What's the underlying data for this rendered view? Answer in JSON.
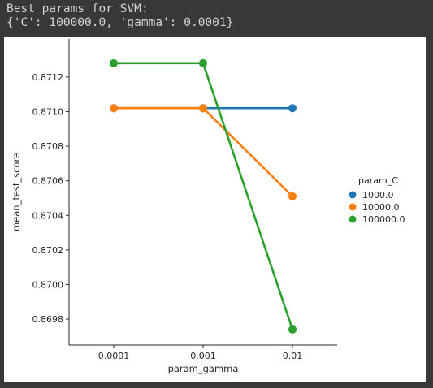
{
  "console": {
    "line1": "Best params for SVM:",
    "line2": "{'C': 100000.0, 'gamma': 0.0001}"
  },
  "chart_data": {
    "type": "line",
    "x": [
      "0.0001",
      "0.001",
      "0.01"
    ],
    "xlabel": "param_gamma",
    "ylabel": "mean_test_score",
    "ylim": [
      0.86965,
      0.87142
    ],
    "yticks": [
      0.8698,
      0.87,
      0.8702,
      0.8704,
      0.8706,
      0.8708,
      0.871,
      0.8712
    ],
    "ytick_labels": [
      "0.8698",
      "0.8700",
      "0.8702",
      "0.8704",
      "0.8706",
      "0.8708",
      "0.8710",
      "0.8712"
    ],
    "grid": false,
    "legend": {
      "title": "param_C",
      "placement": "right"
    },
    "series": [
      {
        "name": "1000.0",
        "color": "#1f77b4",
        "values": [
          0.87102,
          0.87102,
          0.87102
        ]
      },
      {
        "name": "10000.0",
        "color": "#ff7f0e",
        "values": [
          0.87102,
          0.87102,
          0.87051
        ]
      },
      {
        "name": "100000.0",
        "color": "#2ca02c",
        "values": [
          0.87128,
          0.87128,
          0.86974
        ]
      }
    ]
  }
}
